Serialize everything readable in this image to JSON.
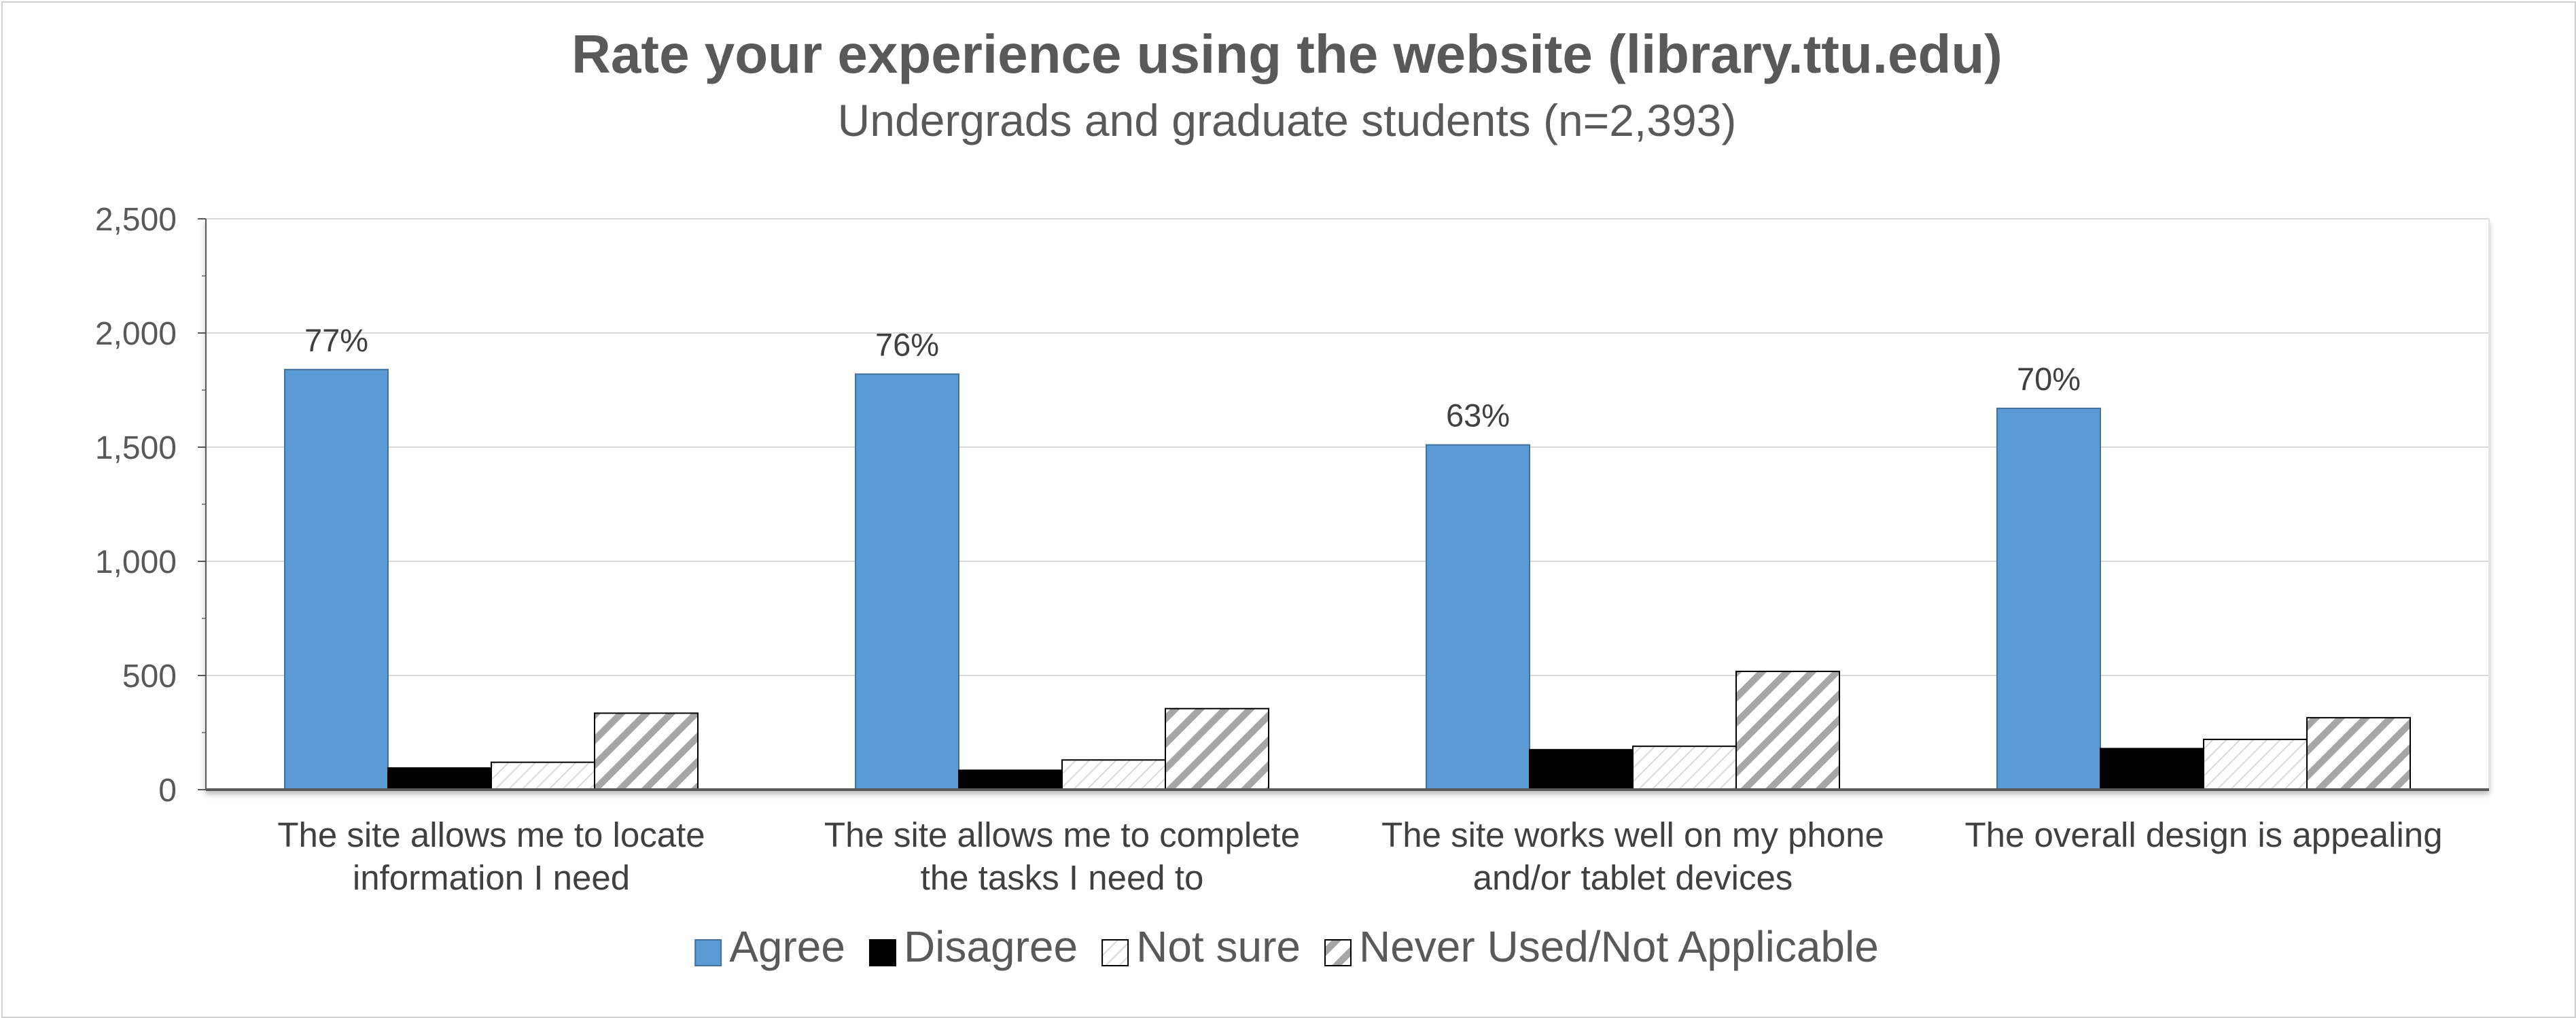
{
  "chart_data": {
    "type": "bar",
    "title": "Rate your experience using the website (library.ttu.edu)",
    "subtitle": "Undergrads and graduate students (n=2,393)",
    "xlabel": "",
    "ylabel": "",
    "ylim": [
      0,
      2500
    ],
    "yticks": [
      "0",
      "500",
      "1,000",
      "1,500",
      "2,000",
      "2,500"
    ],
    "grid": true,
    "legend_position": "bottom",
    "categories": [
      [
        "The site allows me to locate",
        "information I need"
      ],
      [
        "The site allows me to complete",
        "the tasks I need to"
      ],
      [
        "The site works well on my phone",
        "and/or tablet devices"
      ],
      [
        "The overall design is appealing"
      ]
    ],
    "series": [
      {
        "name": "Agree",
        "values": [
          1840,
          1820,
          1510,
          1670
        ],
        "fill": "#5b9bd5",
        "pattern": "solid",
        "labels": [
          "77%",
          "76%",
          "63%",
          "70%"
        ]
      },
      {
        "name": "Disagree",
        "values": [
          95,
          85,
          175,
          180
        ],
        "fill": "#000000",
        "pattern": "solid"
      },
      {
        "name": "Not sure",
        "values": [
          120,
          130,
          190,
          220
        ],
        "fill": "#ffffff",
        "pattern": "light-hatch"
      },
      {
        "name": "Never Used/Not Applicable",
        "values": [
          335,
          355,
          518,
          315
        ],
        "fill": "#ffffff",
        "pattern": "hatch"
      }
    ]
  }
}
